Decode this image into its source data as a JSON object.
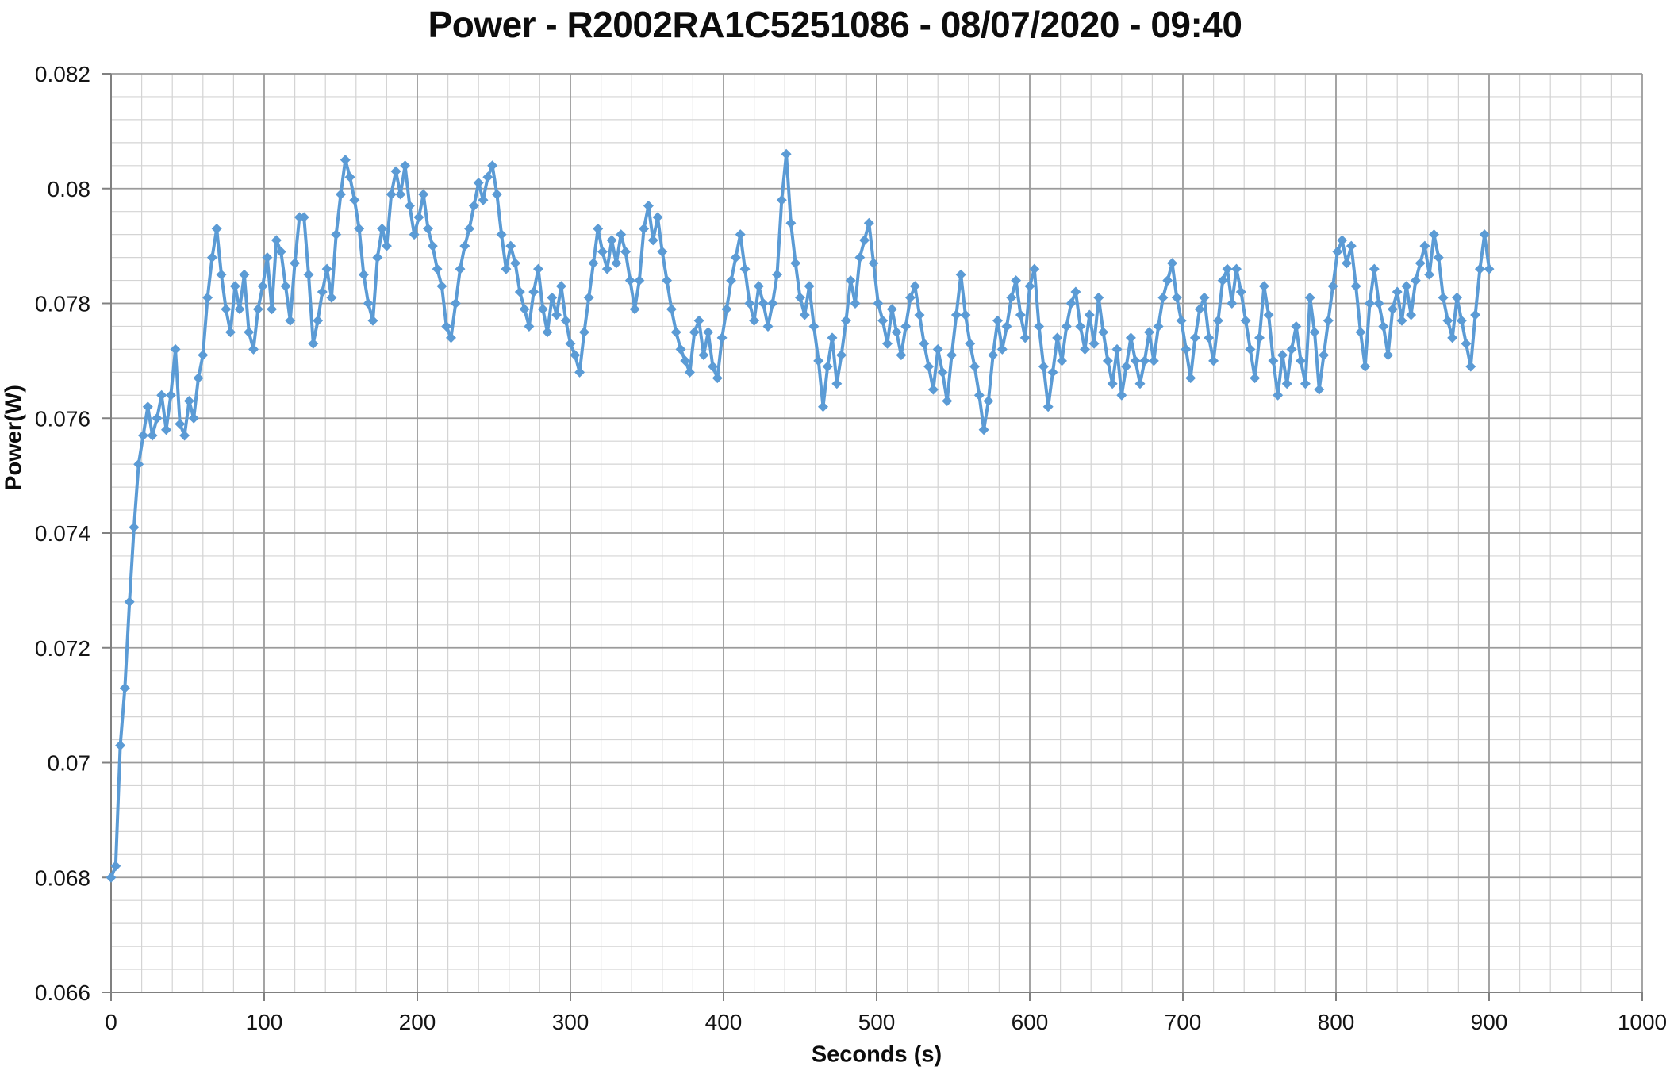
{
  "title": "Power - R2002RA1C5251086 - 08/07/2020 - 09:40",
  "style": {
    "series_color": "#5B9BD5",
    "major_grid_color": "#9b9b9b",
    "minor_grid_color": "#d4d4d4",
    "axis_color": "#808080",
    "text_color": "#141414",
    "background": "#ffffff"
  },
  "chart_data": {
    "type": "line",
    "title": "Power - R2002RA1C5251086 - 08/07/2020 - 09:40",
    "xlabel": "Seconds (s)",
    "ylabel": "Power(W)",
    "xlim": [
      0,
      1000
    ],
    "ylim": [
      0.066,
      0.082
    ],
    "x_major_tick": 100,
    "x_minor_tick": 20,
    "y_major_tick": 0.002,
    "y_minor_tick": 0.0004,
    "x_tick_labels": [
      "0",
      "100",
      "200",
      "300",
      "400",
      "500",
      "600",
      "700",
      "800",
      "900",
      "1000"
    ],
    "y_tick_labels": [
      "0.082",
      "0.08",
      "0.078",
      "0.076",
      "0.074",
      "0.072",
      "0.07",
      "0.068",
      "0.066"
    ],
    "grid": "major+minor",
    "legend": "none",
    "marker": "diamond",
    "series": [
      {
        "color": "#5B9BD5",
        "x_start": 0,
        "x_step_s": 3,
        "values": [
          0.068,
          0.0682,
          0.0703,
          0.0713,
          0.0728,
          0.0741,
          0.0752,
          0.0757,
          0.0762,
          0.0757,
          0.076,
          0.0764,
          0.0758,
          0.0764,
          0.0772,
          0.0759,
          0.0757,
          0.0763,
          0.076,
          0.0767,
          0.0771,
          0.0781,
          0.0788,
          0.0793,
          0.0785,
          0.0779,
          0.0775,
          0.0783,
          0.0779,
          0.0785,
          0.0775,
          0.0772,
          0.0779,
          0.0783,
          0.0788,
          0.0779,
          0.0791,
          0.0789,
          0.0783,
          0.0777,
          0.0787,
          0.0795,
          0.0795,
          0.0785,
          0.0773,
          0.0777,
          0.0782,
          0.0786,
          0.0781,
          0.0792,
          0.0799,
          0.0805,
          0.0802,
          0.0798,
          0.0793,
          0.0785,
          0.078,
          0.0777,
          0.0788,
          0.0793,
          0.079,
          0.0799,
          0.0803,
          0.0799,
          0.0804,
          0.0797,
          0.0792,
          0.0795,
          0.0799,
          0.0793,
          0.079,
          0.0786,
          0.0783,
          0.0776,
          0.0774,
          0.078,
          0.0786,
          0.079,
          0.0793,
          0.0797,
          0.0801,
          0.0798,
          0.0802,
          0.0804,
          0.0799,
          0.0792,
          0.0786,
          0.079,
          0.0787,
          0.0782,
          0.0779,
          0.0776,
          0.0782,
          0.0786,
          0.0779,
          0.0775,
          0.0781,
          0.0778,
          0.0783,
          0.0777,
          0.0773,
          0.0771,
          0.0768,
          0.0775,
          0.0781,
          0.0787,
          0.0793,
          0.0789,
          0.0786,
          0.0791,
          0.0787,
          0.0792,
          0.0789,
          0.0784,
          0.0779,
          0.0784,
          0.0793,
          0.0797,
          0.0791,
          0.0795,
          0.0789,
          0.0784,
          0.0779,
          0.0775,
          0.0772,
          0.077,
          0.0768,
          0.0775,
          0.0777,
          0.0771,
          0.0775,
          0.0769,
          0.0767,
          0.0774,
          0.0779,
          0.0784,
          0.0788,
          0.0792,
          0.0786,
          0.078,
          0.0777,
          0.0783,
          0.078,
          0.0776,
          0.078,
          0.0785,
          0.0798,
          0.0806,
          0.0794,
          0.0787,
          0.0781,
          0.0778,
          0.0783,
          0.0776,
          0.077,
          0.0762,
          0.0769,
          0.0774,
          0.0766,
          0.0771,
          0.0777,
          0.0784,
          0.078,
          0.0788,
          0.0791,
          0.0794,
          0.0787,
          0.078,
          0.0777,
          0.0773,
          0.0779,
          0.0775,
          0.0771,
          0.0776,
          0.0781,
          0.0783,
          0.0778,
          0.0773,
          0.0769,
          0.0765,
          0.0772,
          0.0768,
          0.0763,
          0.0771,
          0.0778,
          0.0785,
          0.0778,
          0.0773,
          0.0769,
          0.0764,
          0.0758,
          0.0763,
          0.0771,
          0.0777,
          0.0772,
          0.0776,
          0.0781,
          0.0784,
          0.0778,
          0.0774,
          0.0783,
          0.0786,
          0.0776,
          0.0769,
          0.0762,
          0.0768,
          0.0774,
          0.077,
          0.0776,
          0.078,
          0.0782,
          0.0776,
          0.0772,
          0.0778,
          0.0773,
          0.0781,
          0.0775,
          0.077,
          0.0766,
          0.0772,
          0.0764,
          0.0769,
          0.0774,
          0.077,
          0.0766,
          0.077,
          0.0775,
          0.077,
          0.0776,
          0.0781,
          0.0784,
          0.0787,
          0.0781,
          0.0777,
          0.0772,
          0.0767,
          0.0774,
          0.0779,
          0.0781,
          0.0774,
          0.077,
          0.0777,
          0.0784,
          0.0786,
          0.078,
          0.0786,
          0.0782,
          0.0777,
          0.0772,
          0.0767,
          0.0774,
          0.0783,
          0.0778,
          0.077,
          0.0764,
          0.0771,
          0.0766,
          0.0772,
          0.0776,
          0.077,
          0.0766,
          0.0781,
          0.0775,
          0.0765,
          0.0771,
          0.0777,
          0.0783,
          0.0789,
          0.0791,
          0.0787,
          0.079,
          0.0783,
          0.0775,
          0.0769,
          0.078,
          0.0786,
          0.078,
          0.0776,
          0.0771,
          0.0779,
          0.0782,
          0.0777,
          0.0783,
          0.0778,
          0.0784,
          0.0787,
          0.079,
          0.0785,
          0.0792,
          0.0788,
          0.0781,
          0.0777,
          0.0774,
          0.0781,
          0.0777,
          0.0773,
          0.0769,
          0.0778,
          0.0786,
          0.0792,
          0.0786
        ]
      }
    ]
  }
}
